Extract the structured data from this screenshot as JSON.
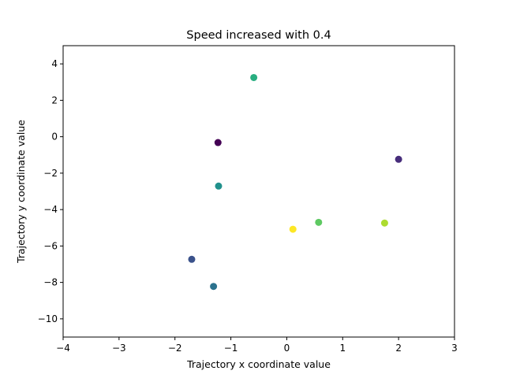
{
  "chart_data": {
    "type": "scatter",
    "title": "Speed increased with 0.4",
    "xlabel": "Trajectory x coordinate value",
    "ylabel": "Trajectory y coordinate value",
    "xlim": [
      -4,
      3
    ],
    "ylim": [
      -11,
      5
    ],
    "xticks": [
      -4,
      -3,
      -2,
      -1,
      0,
      1,
      2,
      3
    ],
    "xtick_labels": [
      "−4",
      "−3",
      "−2",
      "−1",
      "0",
      "1",
      "2",
      "3"
    ],
    "yticks": [
      4,
      2,
      0,
      -2,
      -4,
      -6,
      -8,
      -10
    ],
    "ytick_labels": [
      "4",
      "2",
      "0",
      "−2",
      "−4",
      "−6",
      "−8",
      "−10"
    ],
    "grid": false,
    "colormap": "viridis",
    "points": [
      {
        "x": -1.23,
        "y": -0.32,
        "color": "#440154"
      },
      {
        "x": 2.0,
        "y": -1.24,
        "color": "#472d7b"
      },
      {
        "x": -1.7,
        "y": -6.73,
        "color": "#3b528b"
      },
      {
        "x": -1.31,
        "y": -8.22,
        "color": "#2c728e"
      },
      {
        "x": -1.22,
        "y": -2.71,
        "color": "#21918c"
      },
      {
        "x": -0.59,
        "y": 3.25,
        "color": "#28ae80"
      },
      {
        "x": 0.57,
        "y": -4.7,
        "color": "#5ec962"
      },
      {
        "x": 1.75,
        "y": -4.74,
        "color": "#addc30"
      },
      {
        "x": 0.11,
        "y": -5.08,
        "color": "#fde725"
      }
    ]
  }
}
